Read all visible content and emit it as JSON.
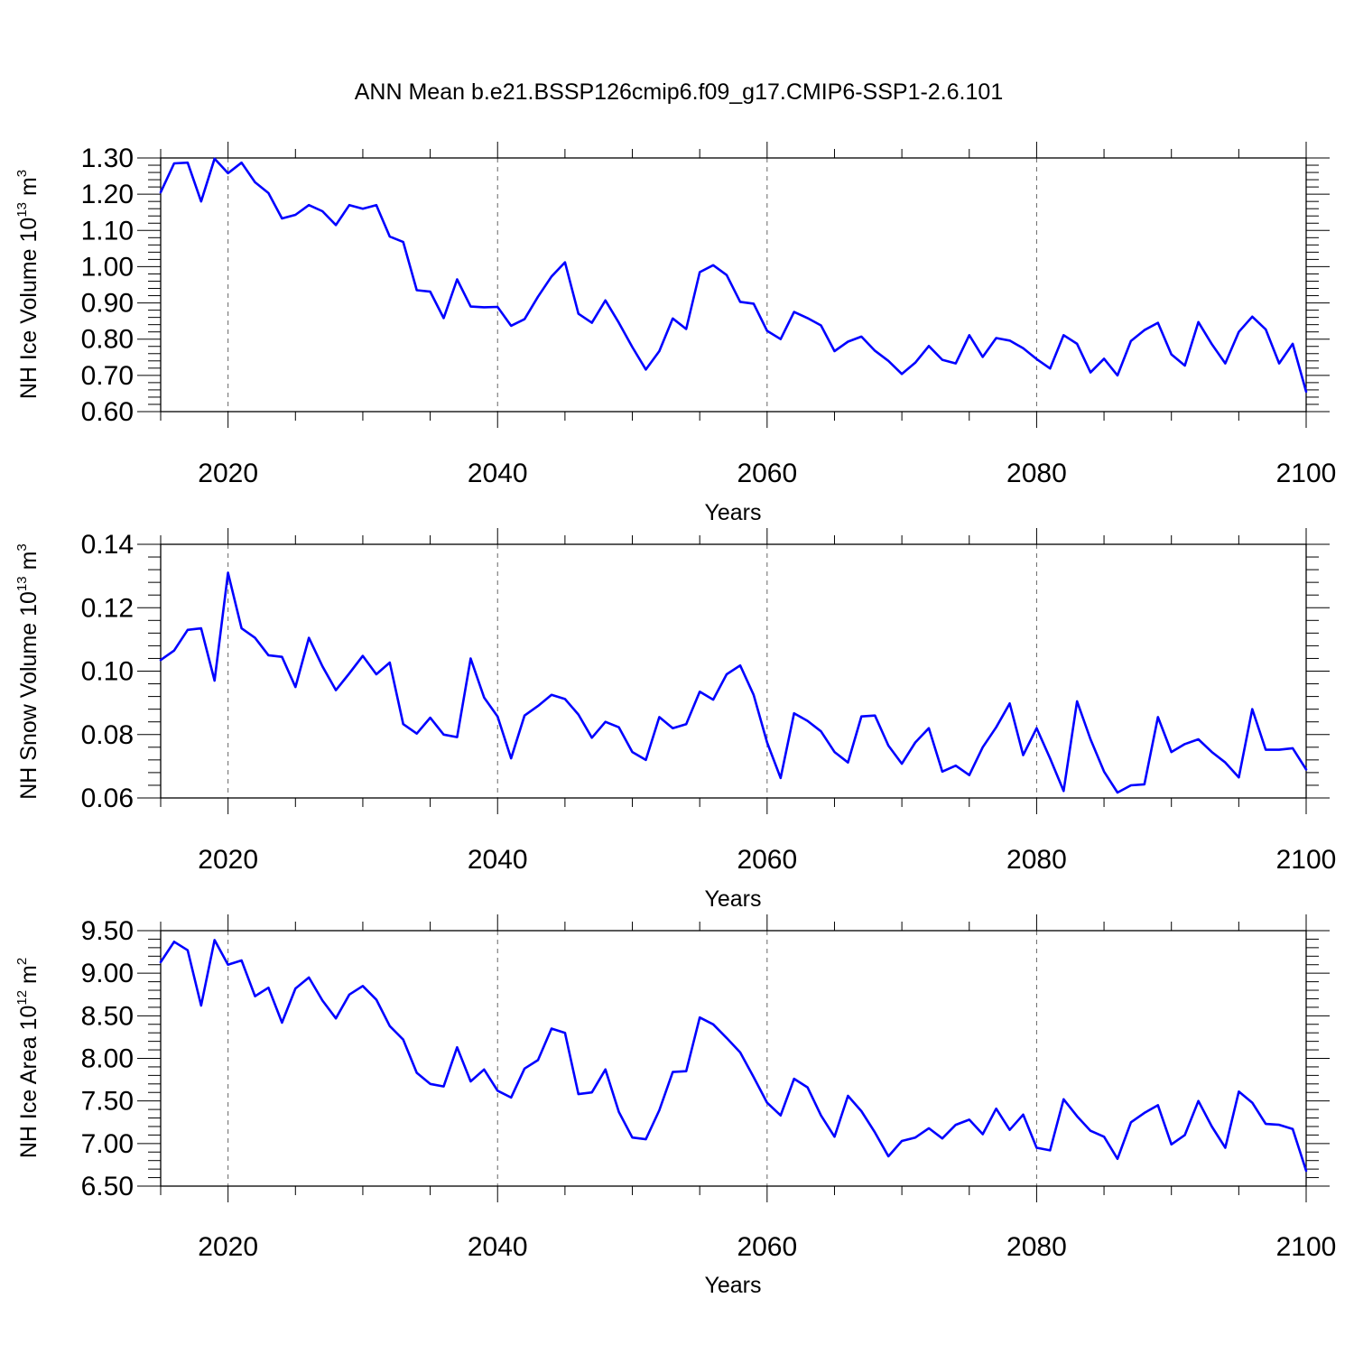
{
  "title": "ANN Mean b.e21.BSSP126cmip6.f09_g17.CMIP6-SSP1-2.6.101",
  "colors": {
    "line": "#0000ff",
    "frame": "#000000",
    "grid": "#666666"
  },
  "chart_data": [
    {
      "type": "line",
      "ylabel_main": "NH Ice Volume 10",
      "ylabel_exp": "13",
      "ylabel_unit": " m",
      "ylabel_unit_exp": "3",
      "xlabel": "Years",
      "xlim": [
        2015,
        2100
      ],
      "ylim": [
        0.6,
        1.3
      ],
      "y_ticks": [
        "0.60",
        "0.70",
        "0.80",
        "0.90",
        "1.00",
        "1.10",
        "1.20",
        "1.30"
      ],
      "x_ticks": [
        "2020",
        "2040",
        "2060",
        "2080",
        "2100"
      ],
      "grid_x": [
        2020,
        2040,
        2060,
        2080
      ],
      "x": [
        2015,
        2016,
        2017,
        2018,
        2019,
        2020,
        2021,
        2022,
        2023,
        2024,
        2025,
        2026,
        2027,
        2028,
        2029,
        2030,
        2031,
        2032,
        2033,
        2034,
        2035,
        2036,
        2037,
        2038,
        2039,
        2040,
        2041,
        2042,
        2043,
        2044,
        2045,
        2046,
        2047,
        2048,
        2049,
        2050,
        2051,
        2052,
        2053,
        2054,
        2055,
        2056,
        2057,
        2058,
        2059,
        2060,
        2061,
        2062,
        2063,
        2064,
        2065,
        2066,
        2067,
        2068,
        2069,
        2070,
        2071,
        2072,
        2073,
        2074,
        2075,
        2076,
        2077,
        2078,
        2079,
        2080,
        2081,
        2082,
        2083,
        2084,
        2085,
        2086,
        2087,
        2088,
        2089,
        2090,
        2091,
        2092,
        2093,
        2094,
        2095,
        2096,
        2097,
        2098,
        2099,
        2100
      ],
      "values": [
        1.205,
        1.285,
        1.287,
        1.18,
        1.298,
        1.258,
        1.287,
        1.233,
        1.203,
        1.133,
        1.143,
        1.17,
        1.153,
        1.115,
        1.17,
        1.16,
        1.17,
        1.083,
        1.068,
        0.935,
        0.931,
        0.858,
        0.965,
        0.89,
        0.888,
        0.889,
        0.837,
        0.855,
        0.917,
        0.973,
        1.012,
        0.87,
        0.845,
        0.907,
        0.845,
        0.778,
        0.716,
        0.767,
        0.857,
        0.828,
        0.985,
        1.004,
        0.977,
        0.903,
        0.898,
        0.823,
        0.8,
        0.875,
        0.858,
        0.838,
        0.767,
        0.793,
        0.807,
        0.768,
        0.74,
        0.704,
        0.735,
        0.781,
        0.743,
        0.733,
        0.811,
        0.751,
        0.803,
        0.796,
        0.775,
        0.745,
        0.719,
        0.811,
        0.787,
        0.708,
        0.746,
        0.7,
        0.795,
        0.825,
        0.845,
        0.758,
        0.727,
        0.847,
        0.786,
        0.733,
        0.82,
        0.862,
        0.827,
        0.733,
        0.787,
        0.655
      ]
    },
    {
      "type": "line",
      "ylabel_main": "NH Snow Volume 10",
      "ylabel_exp": "13",
      "ylabel_unit": " m",
      "ylabel_unit_exp": "3",
      "xlabel": "Years",
      "xlim": [
        2015,
        2100
      ],
      "ylim": [
        0.06,
        0.14
      ],
      "y_ticks": [
        "0.06",
        "0.08",
        "0.10",
        "0.12",
        "0.14"
      ],
      "x_ticks": [
        "2020",
        "2040",
        "2060",
        "2080",
        "2100"
      ],
      "grid_x": [
        2020,
        2040,
        2060,
        2080
      ],
      "x": [
        2015,
        2016,
        2017,
        2018,
        2019,
        2020,
        2021,
        2022,
        2023,
        2024,
        2025,
        2026,
        2027,
        2028,
        2029,
        2030,
        2031,
        2032,
        2033,
        2034,
        2035,
        2036,
        2037,
        2038,
        2039,
        2040,
        2041,
        2042,
        2043,
        2044,
        2045,
        2046,
        2047,
        2048,
        2049,
        2050,
        2051,
        2052,
        2053,
        2054,
        2055,
        2056,
        2057,
        2058,
        2059,
        2060,
        2061,
        2062,
        2063,
        2064,
        2065,
        2066,
        2067,
        2068,
        2069,
        2070,
        2071,
        2072,
        2073,
        2074,
        2075,
        2076,
        2077,
        2078,
        2079,
        2080,
        2081,
        2082,
        2083,
        2084,
        2085,
        2086,
        2087,
        2088,
        2089,
        2090,
        2091,
        2092,
        2093,
        2094,
        2095,
        2096,
        2097,
        2098,
        2099,
        2100
      ],
      "values": [
        0.1035,
        0.1065,
        0.113,
        0.1135,
        0.097,
        0.131,
        0.1135,
        0.1105,
        0.105,
        0.1045,
        0.095,
        0.1105,
        0.1015,
        0.094,
        0.0993,
        0.1048,
        0.099,
        0.1027,
        0.0833,
        0.0803,
        0.0853,
        0.08,
        0.0792,
        0.104,
        0.0917,
        0.0857,
        0.0725,
        0.086,
        0.089,
        0.0925,
        0.0912,
        0.0863,
        0.079,
        0.084,
        0.0823,
        0.0745,
        0.072,
        0.0855,
        0.082,
        0.0833,
        0.0935,
        0.091,
        0.099,
        0.1018,
        0.0925,
        0.0775,
        0.0663,
        0.0867,
        0.0843,
        0.081,
        0.0745,
        0.0712,
        0.0857,
        0.086,
        0.0765,
        0.0708,
        0.0775,
        0.082,
        0.0683,
        0.0702,
        0.0672,
        0.076,
        0.0823,
        0.0898,
        0.0735,
        0.082,
        0.0725,
        0.0622,
        0.0905,
        0.0785,
        0.0683,
        0.0617,
        0.064,
        0.0643,
        0.0855,
        0.0745,
        0.077,
        0.0785,
        0.0745,
        0.0712,
        0.0665,
        0.088,
        0.0752,
        0.0752,
        0.0757,
        0.069
      ]
    },
    {
      "type": "line",
      "ylabel_main": "NH Ice Area 10",
      "ylabel_exp": "12",
      "ylabel_unit": " m",
      "ylabel_unit_exp": "2",
      "xlabel": "Years",
      "xlim": [
        2015,
        2100
      ],
      "ylim": [
        6.5,
        9.5
      ],
      "y_ticks": [
        "6.50",
        "7.00",
        "7.50",
        "8.00",
        "8.50",
        "9.00",
        "9.50"
      ],
      "x_ticks": [
        "2020",
        "2040",
        "2060",
        "2080",
        "2100"
      ],
      "grid_x": [
        2020,
        2040,
        2060,
        2080
      ],
      "x": [
        2015,
        2016,
        2017,
        2018,
        2019,
        2020,
        2021,
        2022,
        2023,
        2024,
        2025,
        2026,
        2027,
        2028,
        2029,
        2030,
        2031,
        2032,
        2033,
        2034,
        2035,
        2036,
        2037,
        2038,
        2039,
        2040,
        2041,
        2042,
        2043,
        2044,
        2045,
        2046,
        2047,
        2048,
        2049,
        2050,
        2051,
        2052,
        2053,
        2054,
        2055,
        2056,
        2057,
        2058,
        2059,
        2060,
        2061,
        2062,
        2063,
        2064,
        2065,
        2066,
        2067,
        2068,
        2069,
        2070,
        2071,
        2072,
        2073,
        2074,
        2075,
        2076,
        2077,
        2078,
        2079,
        2080,
        2081,
        2082,
        2083,
        2084,
        2085,
        2086,
        2087,
        2088,
        2089,
        2090,
        2091,
        2092,
        2093,
        2094,
        2095,
        2096,
        2097,
        2098,
        2099,
        2100
      ],
      "values": [
        9.13,
        9.37,
        9.27,
        8.62,
        9.39,
        9.1,
        9.15,
        8.73,
        8.83,
        8.42,
        8.82,
        8.95,
        8.68,
        8.47,
        8.75,
        8.85,
        8.69,
        8.38,
        8.22,
        7.83,
        7.7,
        7.67,
        8.13,
        7.73,
        7.87,
        7.62,
        7.54,
        7.88,
        7.98,
        8.35,
        8.3,
        7.58,
        7.6,
        7.87,
        7.37,
        7.07,
        7.05,
        7.39,
        7.84,
        7.85,
        8.48,
        8.4,
        8.24,
        8.07,
        7.78,
        7.48,
        7.33,
        7.76,
        7.66,
        7.33,
        7.08,
        7.56,
        7.38,
        7.13,
        6.85,
        7.03,
        7.07,
        7.18,
        7.06,
        7.22,
        7.28,
        7.11,
        7.41,
        7.16,
        7.34,
        6.95,
        6.92,
        7.52,
        7.32,
        7.15,
        7.08,
        6.82,
        7.25,
        7.36,
        7.45,
        6.99,
        7.1,
        7.5,
        7.2,
        6.95,
        7.61,
        7.48,
        7.23,
        7.22,
        7.17,
        6.68
      ]
    }
  ]
}
